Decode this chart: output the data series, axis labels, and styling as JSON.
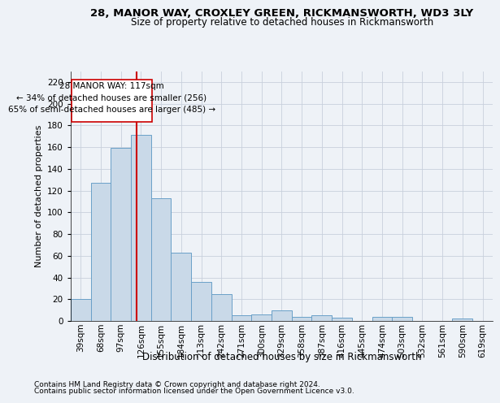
{
  "title1": "28, MANOR WAY, CROXLEY GREEN, RICKMANSWORTH, WD3 3LY",
  "title2": "Size of property relative to detached houses in Rickmansworth",
  "xlabel": "Distribution of detached houses by size in Rickmansworth",
  "ylabel": "Number of detached properties",
  "footnote1": "Contains HM Land Registry data © Crown copyright and database right 2024.",
  "footnote2": "Contains public sector information licensed under the Open Government Licence v3.0.",
  "annotation_line1": "28 MANOR WAY: 117sqm",
  "annotation_line2": "← 34% of detached houses are smaller (256)",
  "annotation_line3": "65% of semi-detached houses are larger (485) →",
  "bar_color": "#c9d9e8",
  "bar_edge_color": "#6aa0c8",
  "grid_color": "#c8d0dc",
  "vline_color": "#cc0000",
  "vline_x": 2.78,
  "categories": [
    "39sqm",
    "68sqm",
    "97sqm",
    "126sqm",
    "155sqm",
    "184sqm",
    "213sqm",
    "242sqm",
    "271sqm",
    "300sqm",
    "329sqm",
    "358sqm",
    "387sqm",
    "416sqm",
    "445sqm",
    "474sqm",
    "503sqm",
    "532sqm",
    "561sqm",
    "590sqm",
    "619sqm"
  ],
  "values": [
    20,
    127,
    159,
    171,
    113,
    63,
    36,
    25,
    5,
    6,
    10,
    4,
    5,
    3,
    0,
    4,
    4,
    0,
    0,
    2,
    0
  ],
  "ylim": [
    0,
    230
  ],
  "yticks": [
    0,
    20,
    40,
    60,
    80,
    100,
    120,
    140,
    160,
    180,
    200,
    220
  ],
  "background_color": "#eef2f7",
  "plot_bg_color": "#eef2f7",
  "title1_fontsize": 9.5,
  "title2_fontsize": 8.5,
  "ylabel_fontsize": 8,
  "xlabel_fontsize": 8.5,
  "tick_fontsize": 7.5,
  "annot_fontsize": 7.5,
  "footnote_fontsize": 6.5
}
